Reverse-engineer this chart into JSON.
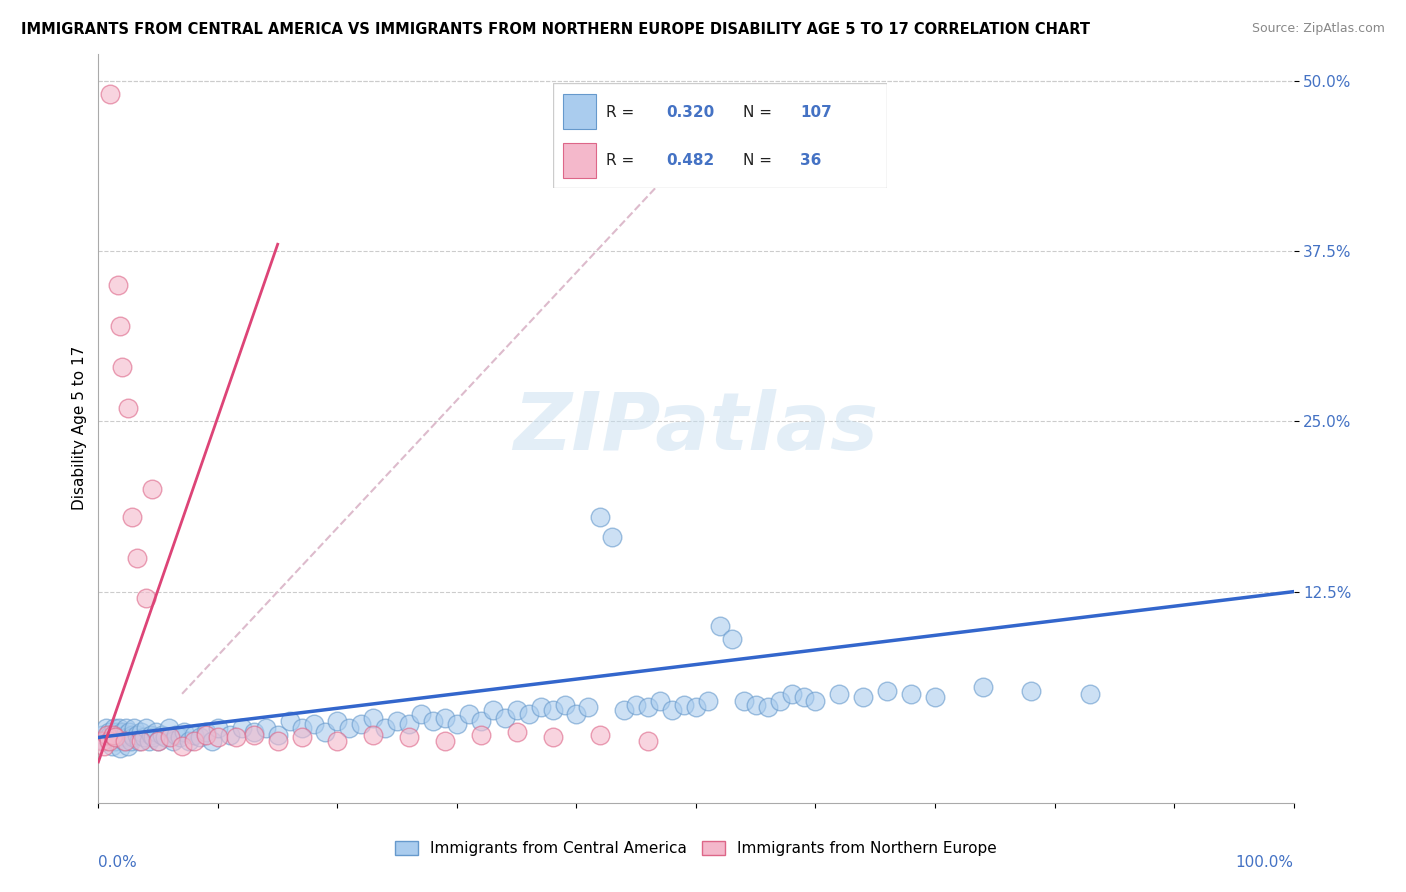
{
  "title": "IMMIGRANTS FROM CENTRAL AMERICA VS IMMIGRANTS FROM NORTHERN EUROPE DISABILITY AGE 5 TO 17 CORRELATION CHART",
  "source": "Source: ZipAtlas.com",
  "ylabel": "Disability Age 5 to 17",
  "ytick_labels": [
    "12.5%",
    "25.0%",
    "37.5%",
    "50.0%"
  ],
  "ytick_values": [
    0.125,
    0.25,
    0.375,
    0.5
  ],
  "xlim": [
    0.0,
    1.0
  ],
  "ylim": [
    -0.03,
    0.52
  ],
  "blue_color": "#aaccee",
  "pink_color": "#f4b8cb",
  "blue_edge": "#6699cc",
  "pink_edge": "#dd6688",
  "blue_line_color": "#3366cc",
  "pink_line_color": "#dd4477",
  "trend_line_color": "#ddbbcc",
  "R_blue": 0.32,
  "N_blue": 107,
  "R_pink": 0.482,
  "N_pink": 36,
  "watermark": "ZIPatlas",
  "legend_label_blue": "Immigrants from Central America",
  "legend_label_pink": "Immigrants from Northern Europe",
  "blue_scatter_x": [
    0.003,
    0.005,
    0.006,
    0.008,
    0.009,
    0.01,
    0.011,
    0.012,
    0.013,
    0.014,
    0.015,
    0.016,
    0.017,
    0.018,
    0.019,
    0.02,
    0.021,
    0.022,
    0.023,
    0.024,
    0.025,
    0.026,
    0.027,
    0.028,
    0.029,
    0.03,
    0.032,
    0.034,
    0.036,
    0.038,
    0.04,
    0.042,
    0.044,
    0.046,
    0.048,
    0.05,
    0.053,
    0.056,
    0.059,
    0.062,
    0.065,
    0.068,
    0.072,
    0.076,
    0.08,
    0.085,
    0.09,
    0.095,
    0.1,
    0.11,
    0.12,
    0.13,
    0.14,
    0.15,
    0.16,
    0.17,
    0.18,
    0.19,
    0.2,
    0.21,
    0.22,
    0.23,
    0.24,
    0.25,
    0.26,
    0.27,
    0.28,
    0.29,
    0.3,
    0.31,
    0.32,
    0.33,
    0.34,
    0.35,
    0.36,
    0.37,
    0.38,
    0.39,
    0.4,
    0.41,
    0.42,
    0.43,
    0.44,
    0.45,
    0.46,
    0.47,
    0.48,
    0.49,
    0.5,
    0.51,
    0.52,
    0.53,
    0.54,
    0.55,
    0.56,
    0.57,
    0.58,
    0.59,
    0.6,
    0.62,
    0.64,
    0.66,
    0.68,
    0.7,
    0.74,
    0.78,
    0.83
  ],
  "blue_scatter_y": [
    0.02,
    0.015,
    0.025,
    0.018,
    0.022,
    0.02,
    0.012,
    0.018,
    0.025,
    0.015,
    0.022,
    0.018,
    0.025,
    0.01,
    0.018,
    0.022,
    0.015,
    0.02,
    0.025,
    0.018,
    0.012,
    0.022,
    0.015,
    0.02,
    0.018,
    0.025,
    0.02,
    0.015,
    0.022,
    0.018,
    0.025,
    0.015,
    0.02,
    0.018,
    0.022,
    0.015,
    0.02,
    0.018,
    0.025,
    0.015,
    0.02,
    0.018,
    0.022,
    0.015,
    0.02,
    0.018,
    0.022,
    0.015,
    0.025,
    0.02,
    0.025,
    0.022,
    0.025,
    0.02,
    0.03,
    0.025,
    0.028,
    0.022,
    0.03,
    0.025,
    0.028,
    0.032,
    0.025,
    0.03,
    0.028,
    0.035,
    0.03,
    0.032,
    0.028,
    0.035,
    0.03,
    0.038,
    0.032,
    0.038,
    0.035,
    0.04,
    0.038,
    0.042,
    0.035,
    0.04,
    0.18,
    0.165,
    0.038,
    0.042,
    0.04,
    0.045,
    0.038,
    0.042,
    0.04,
    0.045,
    0.1,
    0.09,
    0.045,
    0.042,
    0.04,
    0.045,
    0.05,
    0.048,
    0.045,
    0.05,
    0.048,
    0.052,
    0.05,
    0.048,
    0.055,
    0.052,
    0.05
  ],
  "pink_scatter_x": [
    0.003,
    0.005,
    0.007,
    0.009,
    0.01,
    0.012,
    0.014,
    0.016,
    0.018,
    0.02,
    0.022,
    0.025,
    0.028,
    0.032,
    0.036,
    0.04,
    0.045,
    0.05,
    0.06,
    0.07,
    0.08,
    0.09,
    0.1,
    0.115,
    0.13,
    0.15,
    0.17,
    0.2,
    0.23,
    0.26,
    0.29,
    0.32,
    0.35,
    0.38,
    0.42,
    0.46
  ],
  "pink_scatter_y": [
    0.015,
    0.012,
    0.02,
    0.015,
    0.49,
    0.02,
    0.018,
    0.35,
    0.32,
    0.29,
    0.015,
    0.26,
    0.18,
    0.15,
    0.015,
    0.12,
    0.2,
    0.015,
    0.018,
    0.012,
    0.015,
    0.02,
    0.018,
    0.018,
    0.02,
    0.015,
    0.018,
    0.015,
    0.02,
    0.018,
    0.015,
    0.02,
    0.022,
    0.018,
    0.02,
    0.015
  ],
  "blue_trendline_x": [
    0.0,
    1.0
  ],
  "blue_trendline_y": [
    0.018,
    0.125
  ],
  "pink_trendline_x": [
    0.0,
    0.15
  ],
  "pink_trendline_y": [
    0.0,
    0.38
  ],
  "grey_trendline_x": [
    0.07,
    0.55
  ],
  "grey_trendline_y": [
    0.05,
    0.5
  ]
}
